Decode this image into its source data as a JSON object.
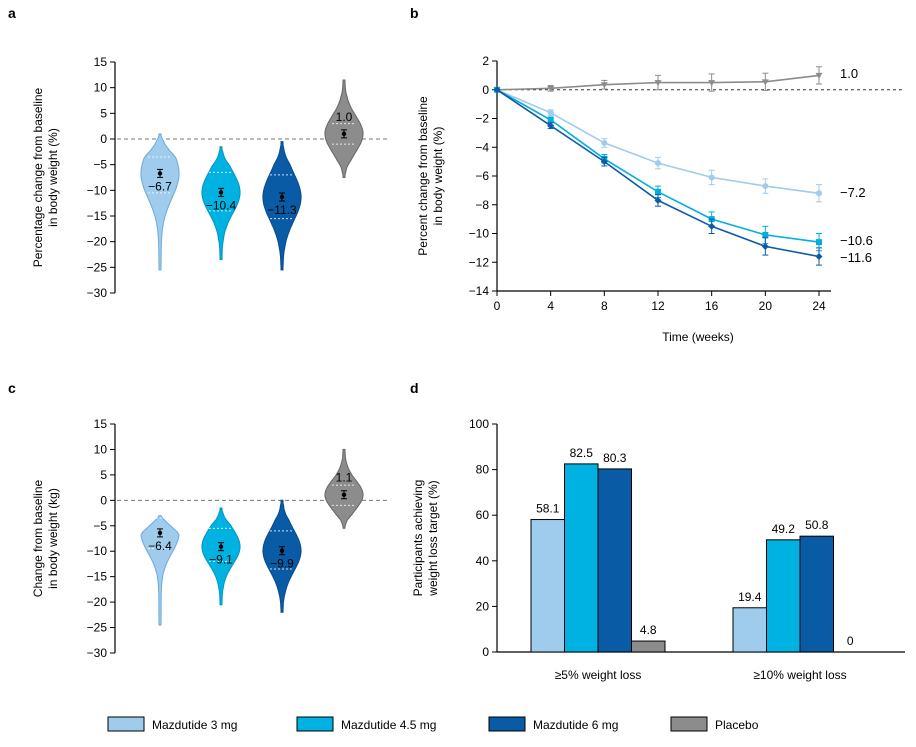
{
  "colors": {
    "m3": "#9fcbec",
    "m45": "#00b2e2",
    "m6": "#0a5ba5",
    "placebo": "#8c8c8c",
    "m3_dark": "#6fa9d9",
    "m45_dark": "#0094c2",
    "m6_dark": "#084b8a",
    "placebo_dark": "#666666",
    "line_m3": "#9fcbec",
    "line_m45": "#00aee0",
    "line_m6": "#0d5aa8",
    "line_placebo": "#8c8c8c"
  },
  "legend": {
    "items": [
      {
        "label": "Mazdutide 3 mg",
        "color_key": "m3"
      },
      {
        "label": "Mazdutide 4.5 mg",
        "color_key": "m45"
      },
      {
        "label": "Mazdutide 6 mg",
        "color_key": "m6"
      },
      {
        "label": "Placebo",
        "color_key": "placebo"
      }
    ]
  },
  "chart_data": [
    {
      "panel": "a",
      "type": "violin",
      "title": "",
      "ylabel_lines": [
        "Percentage change from baseline",
        "in body weight (%)"
      ],
      "ylim": [
        -30,
        15
      ],
      "yticks": [
        15,
        10,
        5,
        0,
        -5,
        -10,
        -15,
        -20,
        -25,
        -30
      ],
      "reference_line": 0,
      "groups": [
        {
          "name": "Mazdutide 3 mg",
          "mean": -6.7,
          "label": "−6.7",
          "range": [
            -25.5,
            1.0
          ],
          "q1": -10.5,
          "q3": -3.5
        },
        {
          "name": "Mazdutide 4.5 mg",
          "mean": -10.4,
          "label": "−10.4",
          "range": [
            -23.5,
            -1.5
          ],
          "q1": -14.0,
          "q3": -6.5
        },
        {
          "name": "Mazdutide 6 mg",
          "mean": -11.3,
          "label": "−11.3",
          "range": [
            -25.5,
            -0.5
          ],
          "q1": -15.5,
          "q3": -7.0
        },
        {
          "name": "Placebo",
          "mean": 1.0,
          "label": "1.0",
          "range": [
            -7.5,
            11.5
          ],
          "q1": -1.0,
          "q3": 3.0
        }
      ]
    },
    {
      "panel": "b",
      "type": "line",
      "title": "",
      "xlabel": "Time  (weeks)",
      "ylabel_lines": [
        "Percent change from baseline",
        "in body weight (%)"
      ],
      "x": [
        0,
        4,
        8,
        12,
        16,
        20,
        24
      ],
      "xlim": [
        0,
        24
      ],
      "ylim": [
        -14,
        2
      ],
      "yticks": [
        2,
        0,
        -2,
        -4,
        -6,
        -8,
        -10,
        -12,
        -14
      ],
      "reference_line": 0,
      "series": [
        {
          "name": "Placebo",
          "values": [
            0,
            0.1,
            0.35,
            0.5,
            0.5,
            0.55,
            1.0
          ],
          "err": [
            0,
            0.2,
            0.3,
            0.5,
            0.6,
            0.6,
            0.6
          ],
          "end_label": "1.0",
          "marker": "triangle-down"
        },
        {
          "name": "Mazdutide 3 mg",
          "values": [
            0,
            -1.6,
            -3.7,
            -5.1,
            -6.1,
            -6.7,
            -7.2
          ],
          "err": [
            0,
            0.2,
            0.3,
            0.4,
            0.5,
            0.5,
            0.6
          ],
          "end_label": "−7.2",
          "marker": "circle"
        },
        {
          "name": "Mazdutide 4.5 mg",
          "values": [
            0,
            -2.1,
            -4.8,
            -7.1,
            -9.0,
            -10.1,
            -10.6
          ],
          "err": [
            0,
            0.2,
            0.3,
            0.4,
            0.5,
            0.6,
            0.6
          ],
          "end_label": "−10.6",
          "marker": "square"
        },
        {
          "name": "Mazdutide 6 mg",
          "values": [
            0,
            -2.5,
            -5.0,
            -7.7,
            -9.5,
            -10.9,
            -11.6
          ],
          "err": [
            0,
            0.2,
            0.3,
            0.4,
            0.5,
            0.6,
            0.6
          ],
          "end_label": "−11.6",
          "marker": "diamond"
        }
      ]
    },
    {
      "panel": "c",
      "type": "violin",
      "title": "",
      "ylabel_lines": [
        "Change from baseline",
        "in body weight (kg)"
      ],
      "ylim": [
        -30,
        15
      ],
      "yticks": [
        15,
        10,
        5,
        0,
        -5,
        -10,
        -15,
        -20,
        -25,
        -30
      ],
      "reference_line": 0,
      "groups": [
        {
          "name": "Mazdutide 3 mg",
          "mean": -6.4,
          "label": "−6.4",
          "range": [
            -24.5,
            -3.0
          ],
          "q1": -9.5,
          "q3": -3.5
        },
        {
          "name": "Mazdutide 4.5 mg",
          "mean": -9.1,
          "label": "−9.1",
          "range": [
            -20.5,
            -1.5
          ],
          "q1": -12.0,
          "q3": -5.5
        },
        {
          "name": "Mazdutide 6 mg",
          "mean": -9.9,
          "label": "−9.9",
          "range": [
            -22.0,
            0
          ],
          "q1": -13.5,
          "q3": -6.0
        },
        {
          "name": "Placebo",
          "mean": 1.1,
          "label": "1.1",
          "range": [
            -5.5,
            10.0
          ],
          "q1": -1.0,
          "q3": 3.0
        }
      ]
    },
    {
      "panel": "d",
      "type": "bar",
      "title": "",
      "ylabel_lines": [
        "Participants achieving",
        "weight loss target (%)"
      ],
      "categories": [
        "≥5% weight loss",
        "≥10% weight loss"
      ],
      "ylim": [
        0,
        100
      ],
      "yticks": [
        0,
        20,
        40,
        60,
        80,
        100
      ],
      "series": [
        {
          "name": "Mazdutide 3 mg",
          "values": [
            58.1,
            19.4
          ],
          "labels": [
            "58.1",
            "19.4"
          ]
        },
        {
          "name": "Mazdutide 4.5 mg",
          "values": [
            82.5,
            49.2
          ],
          "labels": [
            "82.5",
            "49.2"
          ]
        },
        {
          "name": "Mazdutide 6 mg",
          "values": [
            80.3,
            50.8
          ],
          "labels": [
            "80.3",
            "50.8"
          ]
        },
        {
          "name": "Placebo",
          "values": [
            4.8,
            0
          ],
          "labels": [
            "4.8",
            "0"
          ]
        }
      ]
    }
  ],
  "panel_labels": [
    "a",
    "b",
    "c",
    "d"
  ]
}
